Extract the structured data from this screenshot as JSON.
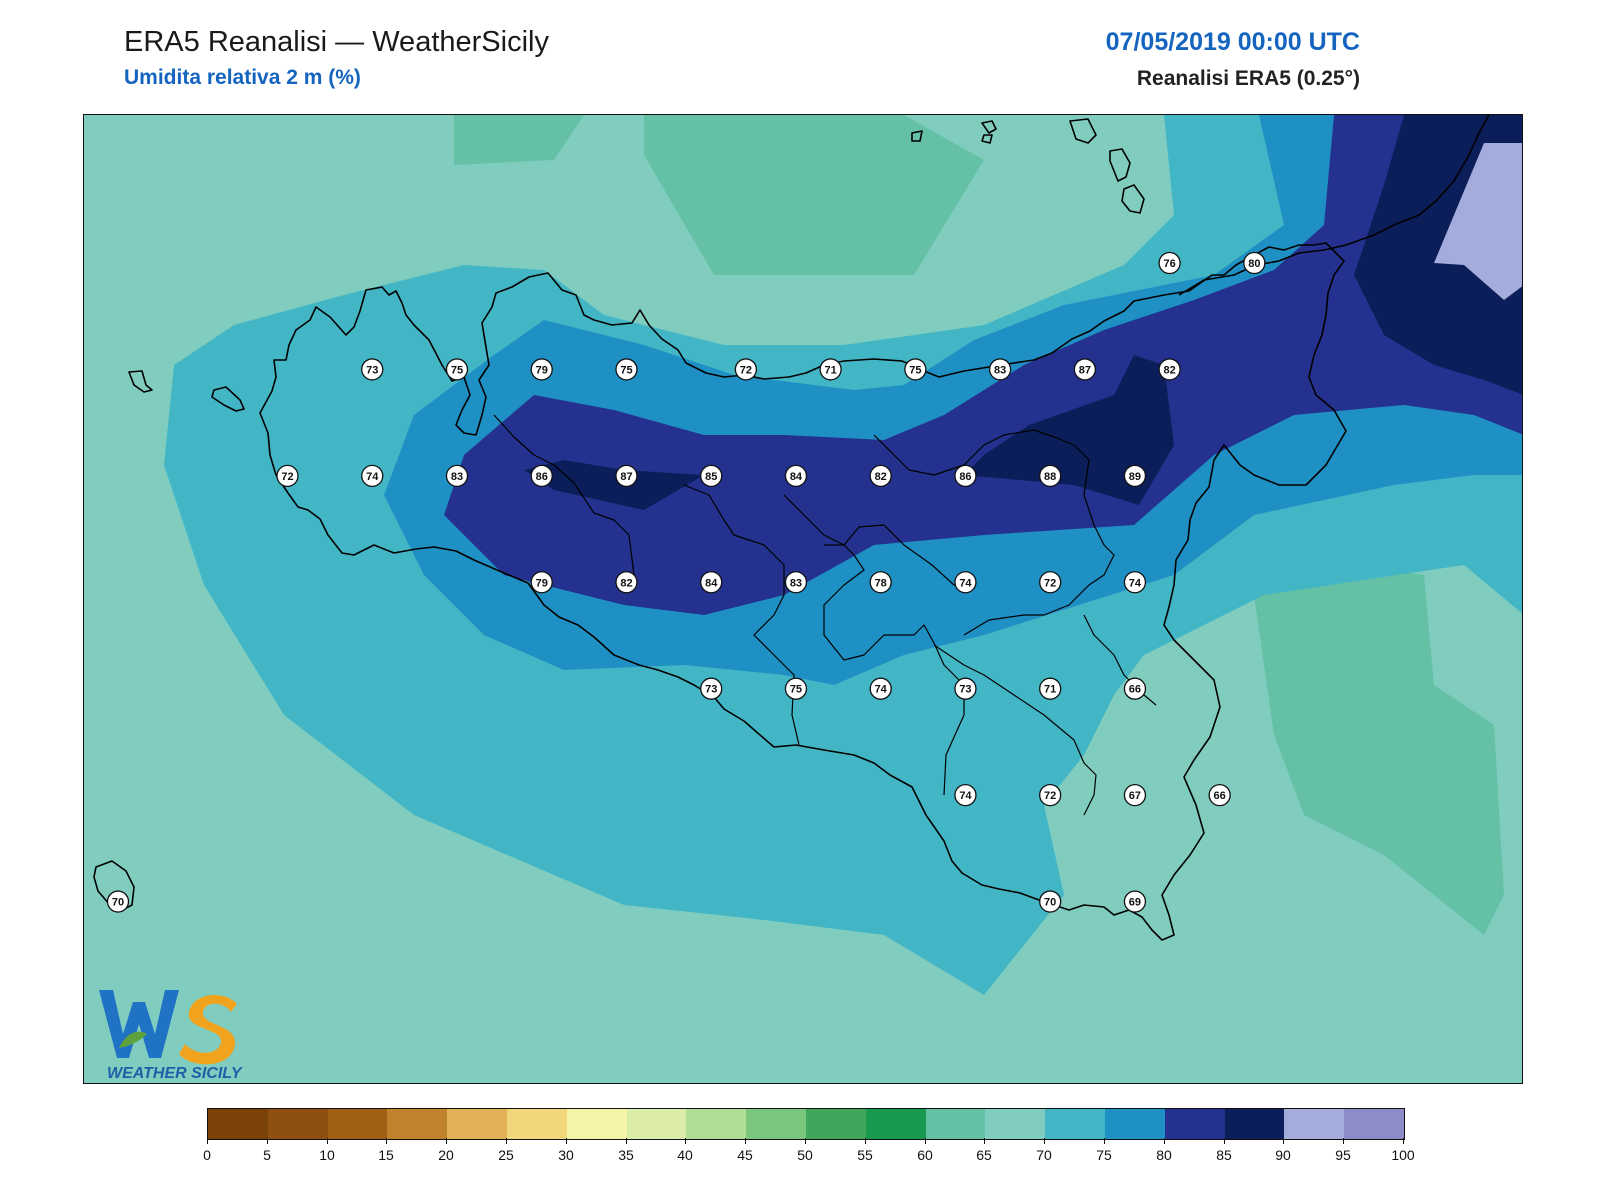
{
  "header": {
    "title": "ERA5 Reanalisi — WeatherSicily",
    "subtitle": "Umidita relativa 2 m (%)",
    "datetime": "07/05/2019 00:00 UTC",
    "source": "Reanalisi ERA5 (0.25°)"
  },
  "logo": {
    "letters": "WS",
    "text": "WEATHER SICILY"
  },
  "legend": {
    "ticks": [
      "0",
      "5",
      "10",
      "15",
      "20",
      "25",
      "30",
      "35",
      "40",
      "45",
      "50",
      "55",
      "60",
      "65",
      "70",
      "75",
      "80",
      "85",
      "90",
      "95",
      "100"
    ],
    "colors": [
      "#7a4208",
      "#8e4f10",
      "#a15f16",
      "#c1822e",
      "#e2b259",
      "#f2d67c",
      "#f6f4a6",
      "#dcedaa",
      "#b0de96",
      "#7bc67d",
      "#3fa65b",
      "#189950",
      "#64c1a5",
      "#80cdbf",
      "#43b6c6",
      "#1f90c4",
      "#24318f",
      "#0b1e5a",
      "#a4acdb",
      "#8d8cc9"
    ]
  },
  "stations": [
    {
      "value": "73",
      "x": 12.85,
      "y": 38.32
    },
    {
      "value": "75",
      "x": 13.29,
      "y": 38.32
    },
    {
      "value": "79",
      "x": 13.73,
      "y": 38.32
    },
    {
      "value": "75",
      "x": 14.17,
      "y": 38.32
    },
    {
      "value": "72",
      "x": 14.79,
      "y": 38.32
    },
    {
      "value": "71",
      "x": 15.23,
      "y": 38.32
    },
    {
      "value": "75",
      "x": 15.67,
      "y": 38.32
    },
    {
      "value": "83",
      "x": 16.11,
      "y": 38.32
    },
    {
      "value": "87",
      "x": 16.55,
      "y": 38.32
    },
    {
      "value": "82",
      "x": 16.99,
      "y": 38.32
    },
    {
      "value": "76",
      "x": 16.99,
      "y": 38.87
    },
    {
      "value": "80",
      "x": 17.43,
      "y": 38.87
    },
    {
      "value": "72",
      "x": 12.41,
      "y": 37.77
    },
    {
      "value": "74",
      "x": 12.85,
      "y": 37.77
    },
    {
      "value": "83",
      "x": 13.29,
      "y": 37.77
    },
    {
      "value": "86",
      "x": 13.73,
      "y": 37.77
    },
    {
      "value": "87",
      "x": 14.17,
      "y": 37.77
    },
    {
      "value": "85",
      "x": 14.61,
      "y": 37.77
    },
    {
      "value": "84",
      "x": 15.05,
      "y": 37.77
    },
    {
      "value": "82",
      "x": 15.49,
      "y": 37.77
    },
    {
      "value": "86",
      "x": 15.93,
      "y": 37.77
    },
    {
      "value": "88",
      "x": 16.37,
      "y": 37.77
    },
    {
      "value": "89",
      "x": 16.81,
      "y": 37.77
    },
    {
      "value": "79",
      "x": 13.73,
      "y": 37.22
    },
    {
      "value": "82",
      "x": 14.17,
      "y": 37.22
    },
    {
      "value": "84",
      "x": 14.61,
      "y": 37.22
    },
    {
      "value": "83",
      "x": 15.05,
      "y": 37.22
    },
    {
      "value": "78",
      "x": 15.49,
      "y": 37.22
    },
    {
      "value": "74",
      "x": 15.93,
      "y": 37.22
    },
    {
      "value": "72",
      "x": 16.37,
      "y": 37.22
    },
    {
      "value": "74",
      "x": 16.81,
      "y": 37.22
    },
    {
      "value": "73",
      "x": 14.61,
      "y": 36.67
    },
    {
      "value": "75",
      "x": 15.05,
      "y": 36.67
    },
    {
      "value": "74",
      "x": 15.49,
      "y": 36.67
    },
    {
      "value": "73",
      "x": 15.93,
      "y": 36.67
    },
    {
      "value": "71",
      "x": 16.37,
      "y": 36.67
    },
    {
      "value": "66",
      "x": 16.81,
      "y": 36.67
    },
    {
      "value": "74",
      "x": 15.93,
      "y": 36.12
    },
    {
      "value": "72",
      "x": 16.37,
      "y": 36.12
    },
    {
      "value": "67",
      "x": 16.81,
      "y": 36.12
    },
    {
      "value": "66",
      "x": 17.25,
      "y": 36.12
    },
    {
      "value": "70",
      "x": 11.53,
      "y": 35.57
    },
    {
      "value": "70",
      "x": 16.37,
      "y": 35.57
    },
    {
      "value": "69",
      "x": 16.81,
      "y": 35.57
    }
  ],
  "colors": {
    "bg65": "#80cdbf",
    "band60": "#64c1a5",
    "band70": "#43b6c6",
    "band75": "#1f90c4",
    "band80": "#24318f",
    "band85": "#0b1e5a",
    "band90": "#a4acdb"
  }
}
